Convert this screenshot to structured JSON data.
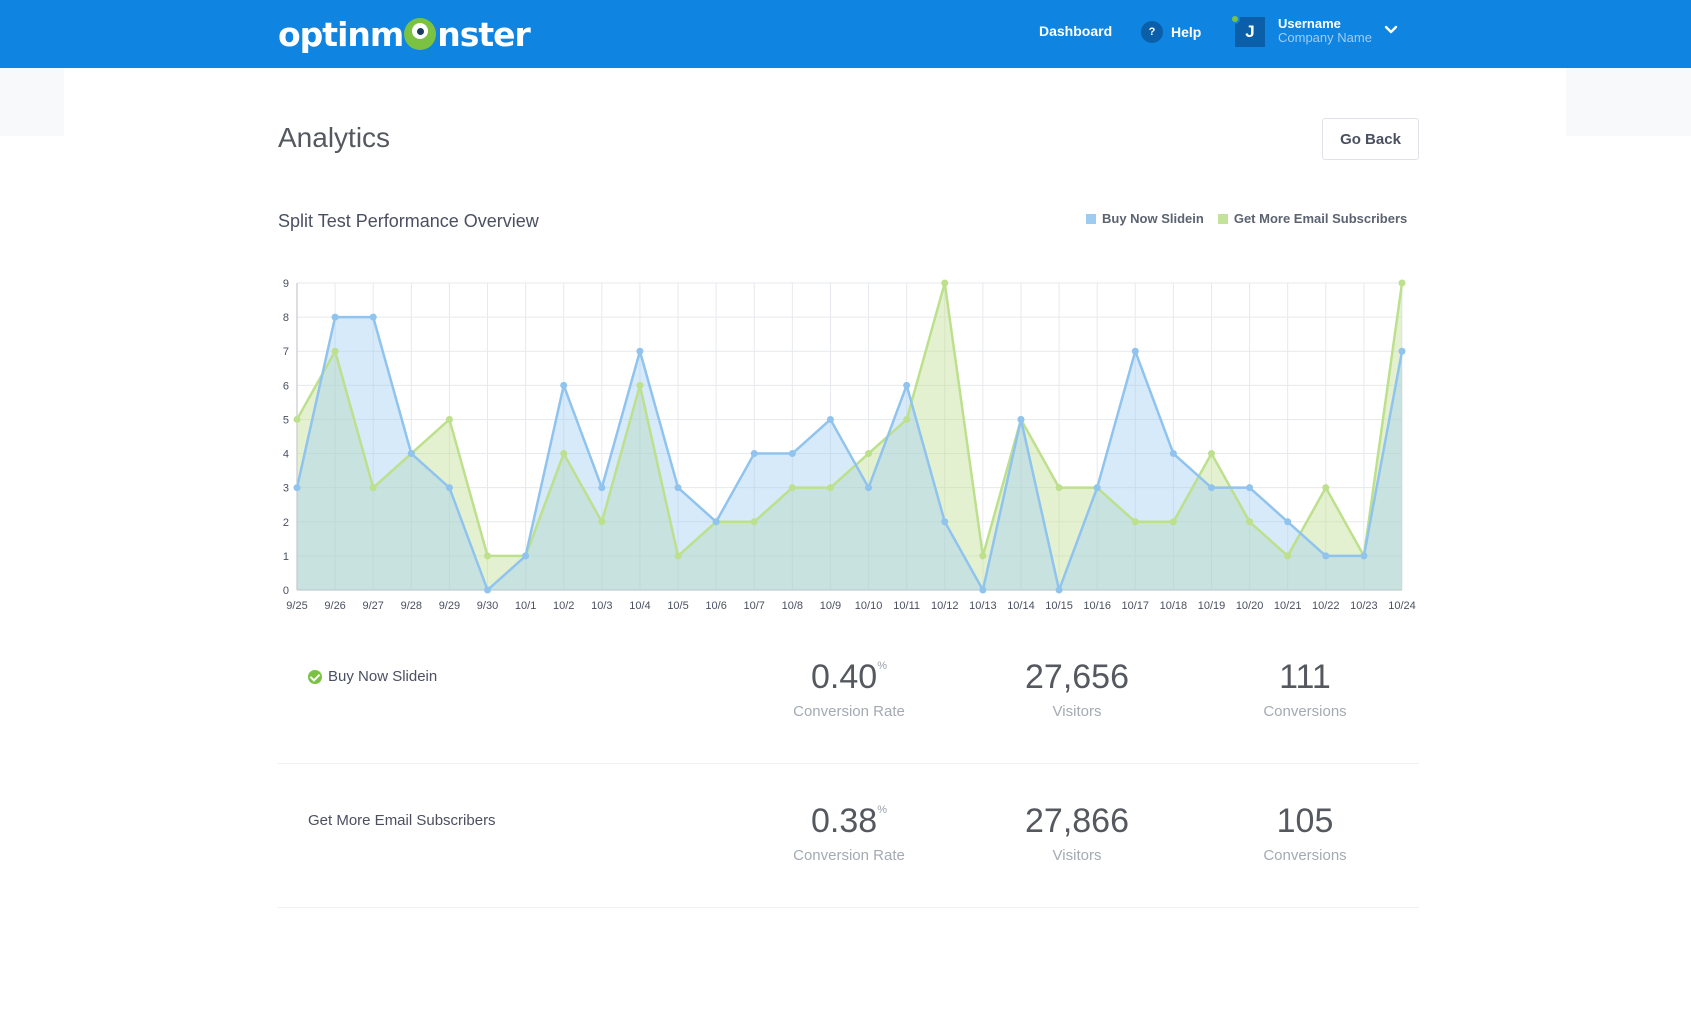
{
  "header": {
    "logo_left": "optinm",
    "logo_right": "nster",
    "nav_dashboard": "Dashboard",
    "help_icon": "?",
    "help_label": "Help",
    "avatar_initial": "J",
    "username": "Username",
    "company": "Company Name"
  },
  "page": {
    "title": "Analytics",
    "go_back": "Go Back",
    "chart_title": "Split Test Performance Overview"
  },
  "legend": [
    {
      "label": "Buy Now Slidein",
      "color": "#9ecbf0"
    },
    {
      "label": "Get More Email Subscribers",
      "color": "#c5e29b"
    }
  ],
  "colors": {
    "brand": "#0f84e0",
    "series_a_line": "#90c4ee",
    "series_b_line": "#bde08d",
    "success": "#7cc242"
  },
  "chart_data": {
    "type": "area",
    "categories": [
      "9/25",
      "9/26",
      "9/27",
      "9/28",
      "9/29",
      "9/30",
      "10/1",
      "10/2",
      "10/3",
      "10/4",
      "10/5",
      "10/6",
      "10/7",
      "10/8",
      "10/9",
      "10/10",
      "10/11",
      "10/12",
      "10/13",
      "10/14",
      "10/15",
      "10/16",
      "10/17",
      "10/18",
      "10/19",
      "10/20",
      "10/21",
      "10/22",
      "10/23",
      "10/24"
    ],
    "series": [
      {
        "name": "Buy Now Slidein",
        "values": [
          3,
          8,
          8,
          4,
          3,
          0,
          1,
          6,
          3,
          7,
          3,
          2,
          4,
          4,
          5,
          3,
          6,
          2,
          0,
          5,
          0,
          3,
          7,
          4,
          3,
          3,
          2,
          1,
          1,
          7
        ]
      },
      {
        "name": "Get More Email Subscribers",
        "values": [
          5,
          7,
          3,
          4,
          5,
          1,
          1,
          4,
          2,
          6,
          1,
          2,
          2,
          3,
          3,
          4,
          5,
          9,
          1,
          5,
          3,
          3,
          2,
          2,
          4,
          2,
          1,
          3,
          1,
          9
        ]
      }
    ],
    "yticks": [
      0,
      1,
      2,
      3,
      4,
      5,
      6,
      7,
      8,
      9
    ],
    "ylim": [
      0,
      9
    ],
    "grid": true,
    "legend_position": "top-right"
  },
  "variants": [
    {
      "name": "Buy Now Slidein",
      "winner": true,
      "conversion_rate": "0.40",
      "rate_unit": "%",
      "rate_label": "Conversion Rate",
      "visitors": "27,656",
      "visitors_label": "Visitors",
      "conversions": "111",
      "conversions_label": "Conversions"
    },
    {
      "name": "Get More Email Subscribers",
      "winner": false,
      "conversion_rate": "0.38",
      "rate_unit": "%",
      "rate_label": "Conversion Rate",
      "visitors": "27,866",
      "visitors_label": "Visitors",
      "conversions": "105",
      "conversions_label": "Conversions"
    }
  ]
}
